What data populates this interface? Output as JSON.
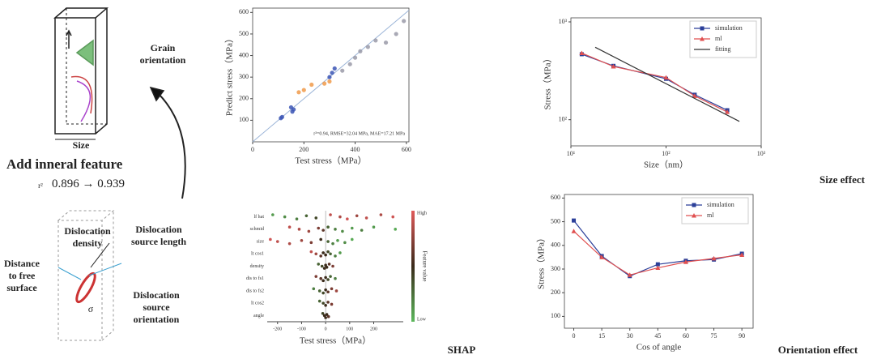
{
  "figure": {
    "schematic": {
      "grain_orientation": "Grain orientation",
      "size": "Size",
      "add_feature": "Add inneral feature",
      "r2_label": "r²",
      "r2_change": "0.896 → 0.939",
      "dislocation_density": "Dislocation density",
      "dislocation_source_length": "Dislocation source length",
      "distance_to_free_surface": "Distance to free surface",
      "dislocation_source_orientation": "Dislocation source orientation",
      "stress_symbol": "σ"
    },
    "panel_labels": {
      "shap": "SHAP",
      "size_effect": "Size effect",
      "orientation_effect": "Orientation effect"
    }
  },
  "chart_data": [
    {
      "type": "scatter",
      "x_label": "Test stress（MPa）",
      "y_label": "Predict stress（MPa）",
      "annotation": "r²=0.94, RMSE=32.04 MPa, MAE=17.21 MPa",
      "xlim": [
        0,
        610
      ],
      "xticks": [
        0,
        200,
        400,
        600
      ],
      "ylim": [
        0,
        620
      ],
      "yticks": [
        100,
        200,
        300,
        400,
        500,
        600
      ],
      "reference_line": true,
      "series": [
        {
          "color": "#3b55b5",
          "x": [
            110,
            115,
            150,
            155,
            160,
            300,
            310,
            320
          ],
          "values": [
            110,
            115,
            160,
            140,
            150,
            300,
            320,
            340
          ]
        },
        {
          "color": "#f09a4a",
          "x": [
            180,
            200,
            230,
            280,
            300
          ],
          "values": [
            230,
            240,
            265,
            270,
            280
          ]
        },
        {
          "color": "#9a9aa8",
          "x": [
            350,
            380,
            400,
            420,
            450,
            480,
            520,
            560,
            590
          ],
          "values": [
            330,
            360,
            390,
            420,
            440,
            470,
            460,
            500,
            560
          ]
        }
      ]
    },
    {
      "type": "beeswarm",
      "x_label": "Test stress（MPa）",
      "colorbar_label": "Feature value",
      "colorbar_high": "High",
      "colorbar_low": "Low",
      "colormap": [
        "#5cb85c",
        "#3a2a1a",
        "#e05a5a"
      ],
      "xlim": [
        -243,
        323
      ],
      "xticks": [
        -200,
        -100,
        0,
        100,
        200
      ],
      "rows": [
        {
          "feature": "lf hat",
          "values": [
            -220,
            -170,
            -120,
            -80,
            -40,
            20,
            60,
            90,
            130,
            170,
            230,
            280
          ],
          "feature_values": [
            0.1,
            0.15,
            0.2,
            0.3,
            0.4,
            0.9,
            0.85,
            0.95,
            0.8,
            0.9,
            0.85,
            0.95
          ]
        },
        {
          "feature": "schmid",
          "values": [
            -150,
            -110,
            -70,
            -30,
            -10,
            10,
            40,
            70,
            110,
            150,
            200,
            290
          ],
          "feature_values": [
            0.9,
            0.85,
            0.8,
            0.7,
            0.6,
            0.3,
            0.2,
            0.15,
            0.1,
            0.2,
            0.1,
            0.05
          ]
        },
        {
          "feature": "size",
          "values": [
            -230,
            -200,
            -150,
            -100,
            -60,
            -20,
            10,
            30,
            50,
            80,
            110
          ],
          "feature_values": [
            0.95,
            0.9,
            0.85,
            0.8,
            0.7,
            0.5,
            0.3,
            0.2,
            0.1,
            0.15,
            0.05
          ]
        },
        {
          "feature": "lt cos1",
          "values": [
            -60,
            -40,
            -20,
            -10,
            0,
            10,
            20,
            40,
            60
          ],
          "feature_values": [
            0.9,
            0.8,
            0.6,
            0.5,
            0.5,
            0.4,
            0.3,
            0.2,
            0.1
          ]
        },
        {
          "feature": "density",
          "values": [
            -30,
            -15,
            -5,
            0,
            5,
            15,
            30
          ],
          "feature_values": [
            0.3,
            0.4,
            0.5,
            0.5,
            0.5,
            0.6,
            0.7
          ]
        },
        {
          "feature": "dis to fs1",
          "values": [
            -40,
            -20,
            -10,
            0,
            10,
            20,
            40
          ],
          "feature_values": [
            0.7,
            0.6,
            0.5,
            0.5,
            0.4,
            0.3,
            0.2
          ]
        },
        {
          "feature": "dis to fs2",
          "values": [
            -50,
            -25,
            -10,
            0,
            10,
            25,
            45
          ],
          "feature_values": [
            0.2,
            0.3,
            0.4,
            0.5,
            0.6,
            0.7,
            0.8
          ]
        },
        {
          "feature": "lt cos2",
          "values": [
            -25,
            -10,
            0,
            10,
            25
          ],
          "feature_values": [
            0.3,
            0.4,
            0.5,
            0.6,
            0.7
          ]
        },
        {
          "feature": "angle",
          "values": [
            -12,
            -5,
            0,
            5,
            12
          ],
          "feature_values": [
            0.4,
            0.5,
            0.5,
            0.5,
            0.6
          ]
        }
      ]
    },
    {
      "type": "line",
      "x_label": "Size（nm）",
      "y_label": "Stress（MPa）",
      "log_x": true,
      "log_y": true,
      "xlim": [
        10,
        1000
      ],
      "xticks": [
        {
          "value": 10,
          "label": "10¹"
        },
        {
          "value": 100,
          "label": "10²"
        },
        {
          "value": 1000,
          "label": "10³"
        }
      ],
      "ylim": [
        54,
        1100
      ],
      "yticks": [
        {
          "value": 100,
          "label": "10²"
        },
        {
          "value": 1000,
          "label": "10³"
        }
      ],
      "legend": "upper right",
      "series": [
        {
          "name": "simulation",
          "color": "#2b3f99",
          "marker": "square",
          "x": [
            13,
            28,
            100,
            200,
            440
          ],
          "values": [
            467,
            355,
            262,
            180,
            125
          ]
        },
        {
          "name": "ml",
          "color": "#e05050",
          "marker": "triangle",
          "x": [
            13,
            28,
            100,
            200,
            440
          ],
          "values": [
            480,
            350,
            270,
            175,
            120
          ]
        },
        {
          "name": "fitting",
          "color": "#333333",
          "marker": "none",
          "x": [
            18,
            590
          ],
          "values": [
            550,
            96
          ]
        }
      ]
    },
    {
      "type": "line",
      "x_label": "Cos of angle",
      "y_label": "Stress（MPa）",
      "xlim": [
        -5,
        96
      ],
      "xticks": [
        0,
        15,
        30,
        45,
        60,
        75,
        90
      ],
      "ylim": [
        50,
        615
      ],
      "yticks": [
        100,
        200,
        300,
        400,
        500,
        600
      ],
      "legend": "upper right",
      "series": [
        {
          "name": "simulation",
          "color": "#2b3f99",
          "marker": "square",
          "x": [
            0,
            15,
            30,
            45,
            60,
            75,
            90
          ],
          "values": [
            505,
            355,
            270,
            320,
            335,
            340,
            365
          ]
        },
        {
          "name": "ml",
          "color": "#e05050",
          "marker": "triangle",
          "x": [
            0,
            15,
            30,
            45,
            60,
            75,
            90
          ],
          "values": [
            460,
            350,
            275,
            305,
            330,
            345,
            360
          ]
        }
      ]
    }
  ]
}
